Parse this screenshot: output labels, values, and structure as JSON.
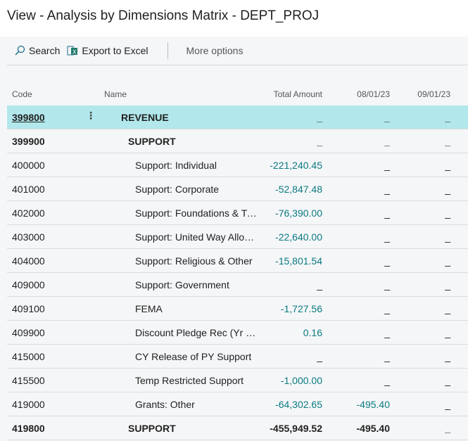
{
  "title": "View - Analysis by Dimensions Matrix - DEPT_PROJ",
  "toolbar": {
    "search": "Search",
    "export": "Export to Excel",
    "more": "More options"
  },
  "columns": {
    "code": "Code",
    "name": "Name",
    "total": "Total Amount",
    "d1": "08/01/23",
    "d2": "09/01/23"
  },
  "rows": [
    {
      "code": "399800",
      "name": "REVENUE",
      "total": "_",
      "d1": "_",
      "d2": "_",
      "bold": true,
      "level": 0,
      "selected": true
    },
    {
      "code": "399900",
      "name": "SUPPORT",
      "total": "_",
      "d1": "_",
      "d2": "_",
      "bold": true,
      "level": 1
    },
    {
      "code": "400000",
      "name": "Support: Individual",
      "total": "-221,240.45",
      "d1": "_",
      "d2": "_",
      "level": 2
    },
    {
      "code": "401000",
      "name": "Support: Corporate",
      "total": "-52,847.48",
      "d1": "_",
      "d2": "_",
      "level": 2
    },
    {
      "code": "402000",
      "name": "Support: Foundations & Trusts",
      "total": "-76,390.00",
      "d1": "_",
      "d2": "_",
      "level": 2
    },
    {
      "code": "403000",
      "name": "Support: United Way Allocations",
      "total": "-22,640.00",
      "d1": "_",
      "d2": "_",
      "level": 2
    },
    {
      "code": "404000",
      "name": "Support: Religious & Other",
      "total": "-15,801.54",
      "d1": "_",
      "d2": "_",
      "level": 2
    },
    {
      "code": "409000",
      "name": "Support: Government",
      "total": "_",
      "d1": "_",
      "d2": "_",
      "level": 2
    },
    {
      "code": "409100",
      "name": "FEMA",
      "total": "-1,727.56",
      "d1": "_",
      "d2": "_",
      "level": 2
    },
    {
      "code": "409900",
      "name": "Discount Pledge Rec (Yr End)",
      "total": "0.16",
      "d1": "_",
      "d2": "_",
      "level": 2
    },
    {
      "code": "415000",
      "name": "CY Release of PY Support",
      "total": "_",
      "d1": "_",
      "d2": "_",
      "level": 2
    },
    {
      "code": "415500",
      "name": "Temp Restricted Support",
      "total": "-1,000.00",
      "d1": "_",
      "d2": "_",
      "level": 2
    },
    {
      "code": "419000",
      "name": "Grants: Other",
      "total": "-64,302.65",
      "d1": "-495.40",
      "d2": "_",
      "level": 2
    },
    {
      "code": "419800",
      "name": "SUPPORT",
      "total": "-455,949.52",
      "d1": "-495.40",
      "d2": "_",
      "bold": true,
      "level": 1
    }
  ]
}
